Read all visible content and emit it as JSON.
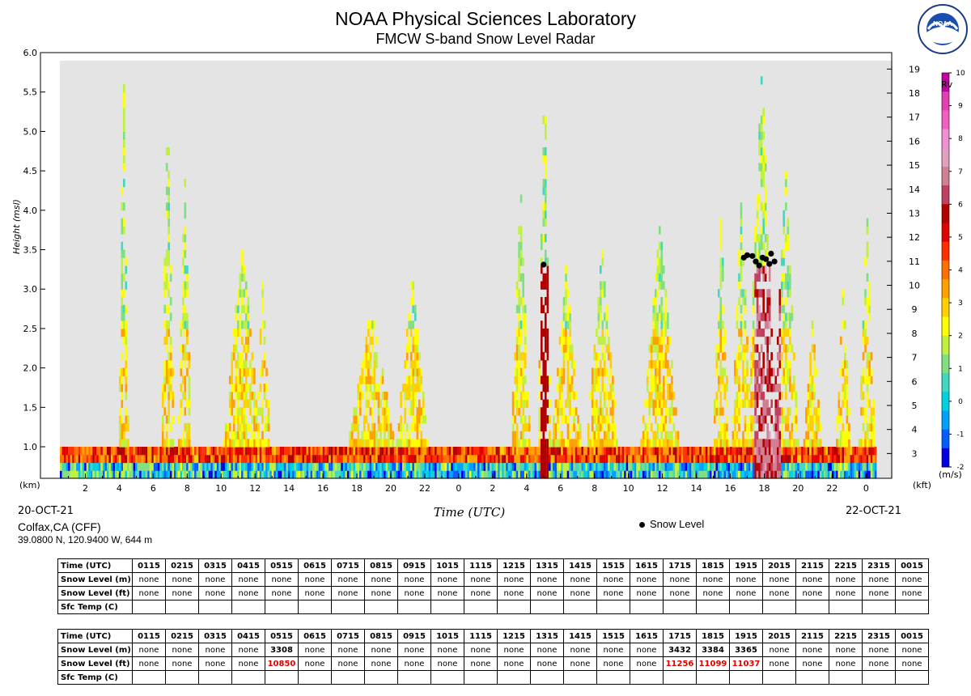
{
  "header": {
    "title": "NOAA Physical Sciences Laboratory",
    "subtitle": "FMCW S-band Snow Level Radar",
    "logo_text": "NOAA"
  },
  "site": {
    "name": "Colfax,CA (CFF)",
    "coords": "39.0800 N, 120.9400 W, 644 m"
  },
  "legend": {
    "snow_level": "Snow Level"
  },
  "chart_data": {
    "type": "heatmap",
    "title": "NOAA Physical Sciences Laboratory",
    "subtitle": "FMCW S-band Snow Level Radar",
    "xlabel": "Time (UTC)",
    "ylabel": "Height (msl)",
    "y_unit_left": "(km)",
    "y_unit_right": "(kft)",
    "date_start": "20-OCT-21",
    "date_end": "22-OCT-21",
    "xlim": [
      0.5,
      48.5
    ],
    "ylim": [
      0.6,
      6.0
    ],
    "x_tick_labels": [
      {
        "x": 2,
        "label": "2"
      },
      {
        "x": 4,
        "label": "4"
      },
      {
        "x": 6,
        "label": "6"
      },
      {
        "x": 8,
        "label": "8"
      },
      {
        "x": 10,
        "label": "10"
      },
      {
        "x": 12,
        "label": "12"
      },
      {
        "x": 14,
        "label": "14"
      },
      {
        "x": 16,
        "label": "16"
      },
      {
        "x": 18,
        "label": "18"
      },
      {
        "x": 20,
        "label": "20"
      },
      {
        "x": 22,
        "label": "22"
      },
      {
        "x": 24,
        "label": "0"
      },
      {
        "x": 26,
        "label": "2"
      },
      {
        "x": 28,
        "label": "4"
      },
      {
        "x": 30,
        "label": "6"
      },
      {
        "x": 32,
        "label": "8"
      },
      {
        "x": 34,
        "label": "10"
      },
      {
        "x": 36,
        "label": "12"
      },
      {
        "x": 38,
        "label": "14"
      },
      {
        "x": 40,
        "label": "16"
      },
      {
        "x": 42,
        "label": "18"
      },
      {
        "x": 44,
        "label": "20"
      },
      {
        "x": 46,
        "label": "22"
      },
      {
        "x": 48,
        "label": "0"
      }
    ],
    "y_ticks_km": [
      "1.0",
      "1.5",
      "2.0",
      "2.5",
      "3.0",
      "3.5",
      "4.0",
      "4.5",
      "5.0",
      "5.5",
      "6.0"
    ],
    "y_ticks_kft": [
      "3",
      "4",
      "5",
      "6",
      "7",
      "8",
      "9",
      "10",
      "11",
      "12",
      "13",
      "14",
      "15",
      "16",
      "17",
      "18",
      "19"
    ],
    "colorbar": {
      "label": "Rv",
      "unit": "(m/s)",
      "range": [
        -2,
        10
      ],
      "ticks": [
        "10",
        "9",
        "8",
        "7",
        "6",
        "5",
        "4",
        "3",
        "2",
        "1",
        "0",
        "-1",
        "-2"
      ],
      "colors": [
        "#0000e0",
        "#0060ff",
        "#00a0ff",
        "#00d0e0",
        "#40d8c0",
        "#80e080",
        "#c0f040",
        "#ffff00",
        "#ffd000",
        "#ffa000",
        "#ff7000",
        "#ff3000",
        "#e00000",
        "#b00000",
        "#c04060",
        "#d08090",
        "#e0a0c0",
        "#f090d0",
        "#f060c0",
        "#e040b0",
        "#c000a0"
      ]
    },
    "snow_level_points": [
      {
        "x": 29.0,
        "y": 3.31
      },
      {
        "x": 40.8,
        "y": 3.4
      },
      {
        "x": 41.0,
        "y": 3.43
      },
      {
        "x": 41.3,
        "y": 3.42
      },
      {
        "x": 41.5,
        "y": 3.35
      },
      {
        "x": 41.7,
        "y": 3.3
      },
      {
        "x": 41.9,
        "y": 3.4
      },
      {
        "x": 42.1,
        "y": 3.38
      },
      {
        "x": 42.3,
        "y": 3.32
      },
      {
        "x": 42.4,
        "y": 3.45
      },
      {
        "x": 42.6,
        "y": 3.35
      }
    ]
  },
  "tables": [
    {
      "headers": [
        "Time (UTC)",
        "0115",
        "0215",
        "0315",
        "0415",
        "0515",
        "0615",
        "0715",
        "0815",
        "0915",
        "1015",
        "1115",
        "1215",
        "1315",
        "1415",
        "1515",
        "1615",
        "1715",
        "1815",
        "1915",
        "2015",
        "2115",
        "2215",
        "2315",
        "0015"
      ],
      "rows": [
        {
          "label": "Snow Level (m)",
          "values": [
            "none",
            "none",
            "none",
            "none",
            "none",
            "none",
            "none",
            "none",
            "none",
            "none",
            "none",
            "none",
            "none",
            "none",
            "none",
            "none",
            "none",
            "none",
            "none",
            "none",
            "none",
            "none",
            "none",
            "none"
          ]
        },
        {
          "label": "Snow Level (ft)",
          "values": [
            "none",
            "none",
            "none",
            "none",
            "none",
            "none",
            "none",
            "none",
            "none",
            "none",
            "none",
            "none",
            "none",
            "none",
            "none",
            "none",
            "none",
            "none",
            "none",
            "none",
            "none",
            "none",
            "none",
            "none"
          ]
        },
        {
          "label": "Sfc Temp (C)",
          "values": [
            "",
            "",
            "",
            "",
            "",
            "",
            "",
            "",
            "",
            "",
            "",
            "",
            "",
            "",
            "",
            "",
            "",
            "",
            "",
            "",
            "",
            "",
            "",
            ""
          ]
        }
      ]
    },
    {
      "headers": [
        "Time (UTC)",
        "0115",
        "0215",
        "0315",
        "0415",
        "0515",
        "0615",
        "0715",
        "0815",
        "0915",
        "1015",
        "1115",
        "1215",
        "1315",
        "1415",
        "1515",
        "1615",
        "1715",
        "1815",
        "1915",
        "2015",
        "2115",
        "2215",
        "2315",
        "0015"
      ],
      "rows": [
        {
          "label": "Snow Level (m)",
          "values": [
            "none",
            "none",
            "none",
            "none",
            "3308",
            "none",
            "none",
            "none",
            "none",
            "none",
            "none",
            "none",
            "none",
            "none",
            "none",
            "none",
            "3432",
            "3384",
            "3365",
            "none",
            "none",
            "none",
            "none",
            "none"
          ]
        },
        {
          "label": "Snow Level (ft)",
          "values": [
            "none",
            "none",
            "none",
            "none",
            "10850",
            "none",
            "none",
            "none",
            "none",
            "none",
            "none",
            "none",
            "none",
            "none",
            "none",
            "none",
            "11256",
            "11099",
            "11037",
            "none",
            "none",
            "none",
            "none",
            "none"
          ]
        },
        {
          "label": "Sfc Temp (C)",
          "values": [
            "",
            "",
            "",
            "",
            "",
            "",
            "",
            "",
            "",
            "",
            "",
            "",
            "",
            "",
            "",
            "",
            "",
            "",
            "",
            "",
            "",
            "",
            "",
            ""
          ]
        }
      ]
    }
  ]
}
